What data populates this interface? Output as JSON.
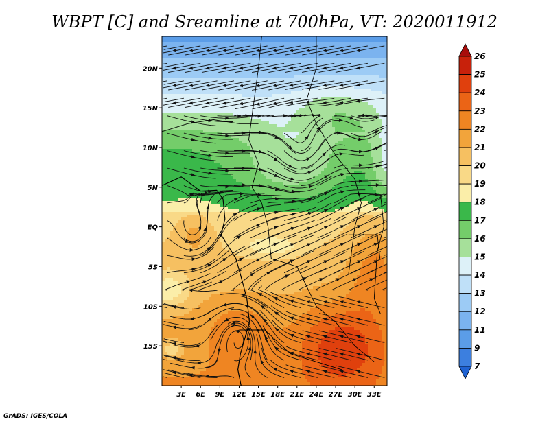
{
  "chart_data": {
    "type": "heatmap",
    "title": "WBPT [C] and Sreamline at 700hPa, VT: 2020011912",
    "variable": "WBPT",
    "units": "C",
    "level": "700hPa",
    "valid_time": "2020011912",
    "overlay": "streamlines",
    "lon_range": [
      0,
      35
    ],
    "lat_range": [
      -20,
      24
    ],
    "x_ticks": [
      {
        "value": 3,
        "label": "3E"
      },
      {
        "value": 6,
        "label": "6E"
      },
      {
        "value": 9,
        "label": "9E"
      },
      {
        "value": 12,
        "label": "12E"
      },
      {
        "value": 15,
        "label": "15E"
      },
      {
        "value": 18,
        "label": "18E"
      },
      {
        "value": 21,
        "label": "21E"
      },
      {
        "value": 24,
        "label": "24E"
      },
      {
        "value": 27,
        "label": "27E"
      },
      {
        "value": 30,
        "label": "30E"
      },
      {
        "value": 33,
        "label": "33E"
      }
    ],
    "y_ticks": [
      {
        "value": 20,
        "label": "20N"
      },
      {
        "value": 15,
        "label": "15N"
      },
      {
        "value": 10,
        "label": "10N"
      },
      {
        "value": 5,
        "label": "5N"
      },
      {
        "value": 0,
        "label": "EQ"
      },
      {
        "value": -5,
        "label": "5S"
      },
      {
        "value": -10,
        "label": "10S"
      },
      {
        "value": -15,
        "label": "15S"
      }
    ],
    "colorbar": {
      "levels": [
        "7",
        "9",
        "11",
        "12",
        "13",
        "14",
        "15",
        "16",
        "17",
        "18",
        "19",
        "20",
        "21",
        "22",
        "23",
        "24",
        "25",
        "26"
      ],
      "colors": [
        "#1f62d2",
        "#3c7fdf",
        "#5b9de8",
        "#7bb3ef",
        "#9ccbf5",
        "#bfe0f8",
        "#ddf1f8",
        "#a6e09a",
        "#74cd6a",
        "#3ab84a",
        "#fbeea9",
        "#f9d987",
        "#f6c061",
        "#f2a43b",
        "#ef8522",
        "#eb6416",
        "#e0400d",
        "#c8210b",
        "#a80d0b"
      ]
    }
  },
  "footer": {
    "credit": "GrADS: IGES/COLA"
  }
}
